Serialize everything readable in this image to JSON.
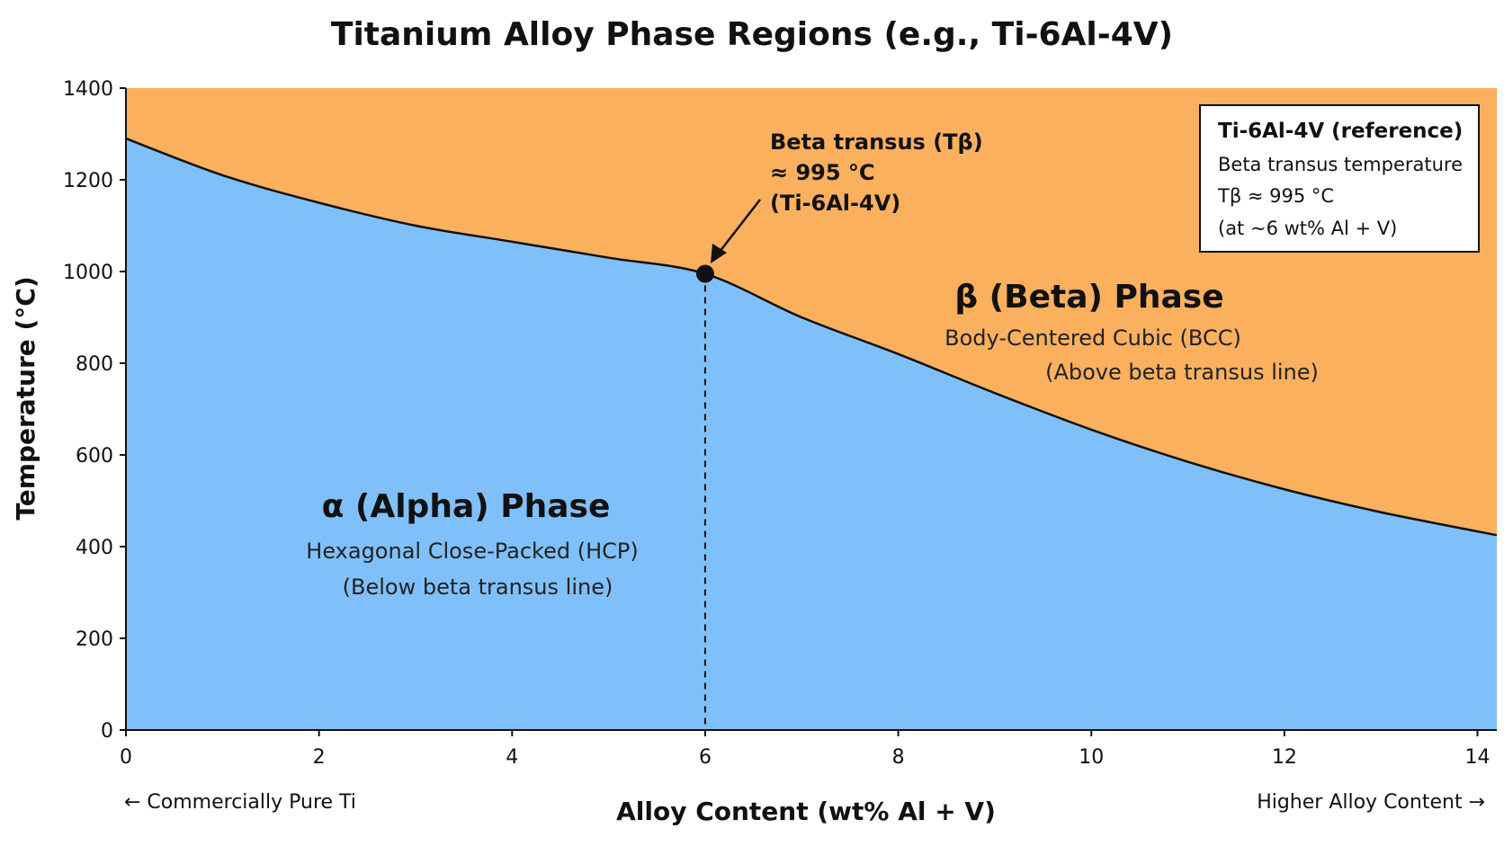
{
  "chart_data": {
    "type": "area",
    "title": "Titanium Alloy Phase Regions (e.g., Ti-6Al-4V)",
    "xlabel": "Alloy Content (wt% Al + V)",
    "ylabel": "Temperature (°C)",
    "xlim": [
      0,
      14.2
    ],
    "ylim": [
      0,
      1400
    ],
    "x_ticks": [
      0,
      2,
      4,
      6,
      8,
      10,
      12,
      14
    ],
    "y_ticks": [
      0,
      200,
      400,
      600,
      800,
      1000,
      1200,
      1400
    ],
    "grid": false,
    "beta_transus_line": {
      "x": [
        0,
        1,
        2,
        3,
        4,
        5,
        6,
        7,
        8,
        9,
        10,
        11,
        12,
        13,
        14.2
      ],
      "y": [
        1290,
        1210,
        1150,
        1100,
        1065,
        1030,
        995,
        900,
        820,
        735,
        655,
        585,
        525,
        475,
        425
      ]
    },
    "colors": {
      "alpha_region": "#80C0FA",
      "beta_region": "#FBB05E",
      "line": "#111111"
    },
    "marker": {
      "x": 6,
      "y": 995
    },
    "x_end_labels": {
      "left": "← Commercially Pure Ti",
      "right": "Higher Alloy Content →"
    },
    "regions": {
      "alpha": {
        "name": "α (Alpha) Phase",
        "line1": "Hexagonal Close-Packed (HCP)",
        "line2": "(Below beta transus line)"
      },
      "beta": {
        "name": "β (Beta) Phase",
        "line1": "Body-Centered Cubic (BCC)",
        "line2": "(Above beta transus line)"
      }
    },
    "annotation": {
      "line1": "Beta transus (Tβ)",
      "line2": "≈ 995 °C",
      "line3": "(Ti-6Al-4V)"
    },
    "reference_box": {
      "title": "Ti-6Al-4V (reference)",
      "line1": "Beta transus temperature",
      "line2": "Tβ ≈ 995 °C",
      "line3": "(at ~6 wt% Al + V)"
    }
  }
}
